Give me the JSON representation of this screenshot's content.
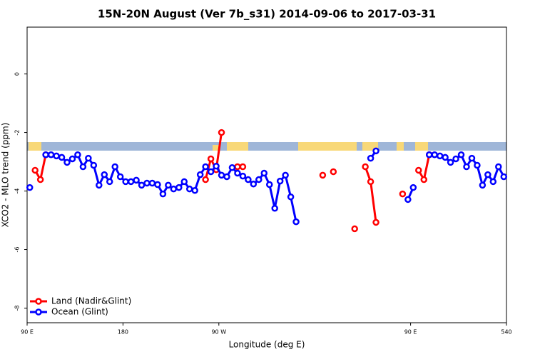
{
  "chart_data": {
    "type": "line",
    "title": "15N-20N August (Ver 7b_s31)   2014-09-06 to 2017-03-31",
    "x_label": "Longitude (deg E)",
    "y_label": "XCO2 - MLO trend (ppm)",
    "xlim": [
      90,
      540
    ],
    "ylim": [
      -8.5,
      1.6
    ],
    "xticks": [
      {
        "value": 90,
        "label": "90 E"
      },
      180,
      {
        "value": 270,
        "label": "90 W"
      },
      {
        "value": 450,
        "label": "90 E"
      },
      540
    ],
    "yticks": [
      0,
      -2,
      -4,
      -6,
      -8
    ],
    "grid": false,
    "legend": "bottom-left",
    "series": [
      {
        "name": "Land (Nadir&Glint)",
        "color": "#ff0000",
        "x": [
          97.5,
          102.5,
          107.5,
          112.5,
          257.5,
          262.5,
          267.5,
          272.5,
          277.5,
          287.5,
          292.5,
          297.5,
          367.5,
          372.5,
          377.5,
          382.5,
          397.5,
          402.5,
          407.5,
          412.5,
          417.5,
          422.5,
          442.5,
          447.5,
          457.5,
          462.5,
          467.5
        ],
        "values": [
          -3.29,
          -3.61,
          -2.76,
          null,
          -3.61,
          -2.9,
          -3.27,
          -2.0,
          null,
          -3.17,
          -3.17,
          null,
          -3.46,
          null,
          -3.34,
          null,
          -5.29,
          null,
          -3.17,
          -3.68,
          -5.07,
          null,
          -4.1,
          null,
          -3.29,
          -3.61,
          -2.76
        ]
      },
      {
        "name": "Ocean (Glint)",
        "color": "#0000ff",
        "x": [
          92.5,
          97.5,
          107.5,
          112.5,
          117.5,
          122.5,
          127.5,
          132.5,
          137.5,
          142.5,
          147.5,
          152.5,
          157.5,
          162.5,
          167.5,
          172.5,
          177.5,
          182.5,
          187.5,
          192.5,
          197.5,
          202.5,
          207.5,
          212.5,
          217.5,
          222.5,
          227.5,
          232.5,
          237.5,
          242.5,
          247.5,
          252.5,
          257.5,
          262.5,
          267.5,
          272.5,
          277.5,
          282.5,
          287.5,
          292.5,
          297.5,
          302.5,
          307.5,
          312.5,
          317.5,
          322.5,
          327.5,
          332.5,
          337.5,
          342.5,
          347.5,
          412.5,
          417.5,
          422.5,
          447.5,
          452.5,
          457.5,
          467.5,
          472.5,
          477.5,
          482.5,
          487.5,
          492.5,
          497.5,
          502.5,
          507.5,
          512.5,
          517.5,
          522.5,
          527.5,
          532.5,
          537.5
        ],
        "values": [
          -3.88,
          null,
          -2.76,
          -2.76,
          -2.8,
          -2.85,
          -3.02,
          -2.9,
          -2.76,
          -3.17,
          -2.88,
          -3.12,
          -3.8,
          -3.44,
          -3.68,
          -3.17,
          -3.51,
          -3.68,
          -3.68,
          -3.63,
          -3.8,
          -3.73,
          -3.73,
          -3.78,
          -4.1,
          -3.8,
          -3.93,
          -3.88,
          -3.68,
          -3.93,
          -3.98,
          -3.44,
          -3.17,
          -3.34,
          -3.15,
          -3.46,
          -3.51,
          -3.2,
          -3.39,
          -3.49,
          -3.61,
          -3.76,
          -3.61,
          -3.39,
          -3.78,
          -4.59,
          -3.66,
          -3.46,
          -4.2,
          -5.05,
          null,
          -2.88,
          -2.63,
          null,
          -4.29,
          -3.88,
          null,
          -2.76,
          -2.76,
          -2.8,
          -2.85,
          -3.02,
          -2.9,
          -2.76,
          -3.17,
          -2.88,
          -3.12,
          -3.8,
          -3.44,
          -3.68,
          -3.17,
          -3.51
        ]
      }
    ]
  }
}
